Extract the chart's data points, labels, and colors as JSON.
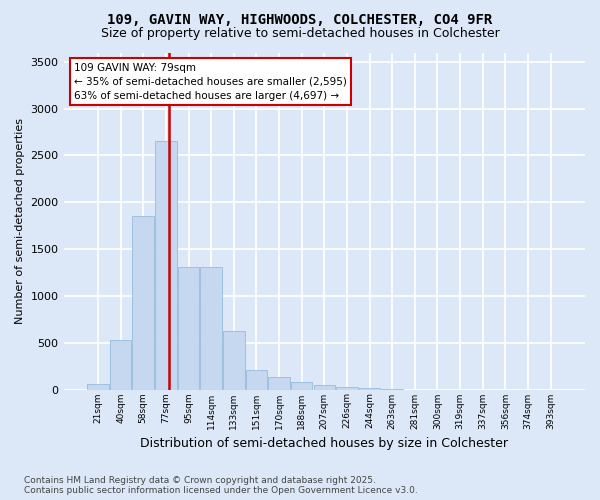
{
  "title1": "109, GAVIN WAY, HIGHWOODS, COLCHESTER, CO4 9FR",
  "title2": "Size of property relative to semi-detached houses in Colchester",
  "xlabel": "Distribution of semi-detached houses by size in Colchester",
  "ylabel": "Number of semi-detached properties",
  "footnote": "Contains HM Land Registry data © Crown copyright and database right 2025.\nContains public sector information licensed under the Open Government Licence v3.0.",
  "bar_color": "#c5d8f0",
  "bar_edge_color": "#8ab4d8",
  "background_color": "#dce8f8",
  "grid_color": "#ffffff",
  "vline_color": "#cc0000",
  "vline_index": 3,
  "annotation_text": "109 GAVIN WAY: 79sqm\n← 35% of semi-detached houses are smaller (2,595)\n63% of semi-detached houses are larger (4,697) →",
  "annotation_box_edgecolor": "#cc0000",
  "categories": [
    "21sqm",
    "40sqm",
    "58sqm",
    "77sqm",
    "95sqm",
    "114sqm",
    "133sqm",
    "151sqm",
    "170sqm",
    "188sqm",
    "207sqm",
    "226sqm",
    "244sqm",
    "263sqm",
    "281sqm",
    "300sqm",
    "319sqm",
    "337sqm",
    "356sqm",
    "374sqm",
    "393sqm"
  ],
  "values": [
    60,
    530,
    1850,
    2650,
    1310,
    1310,
    620,
    210,
    130,
    75,
    50,
    25,
    15,
    5,
    0,
    0,
    0,
    0,
    0,
    0,
    0
  ],
  "ylim": [
    0,
    3600
  ],
  "yticks": [
    0,
    500,
    1000,
    1500,
    2000,
    2500,
    3000,
    3500
  ]
}
